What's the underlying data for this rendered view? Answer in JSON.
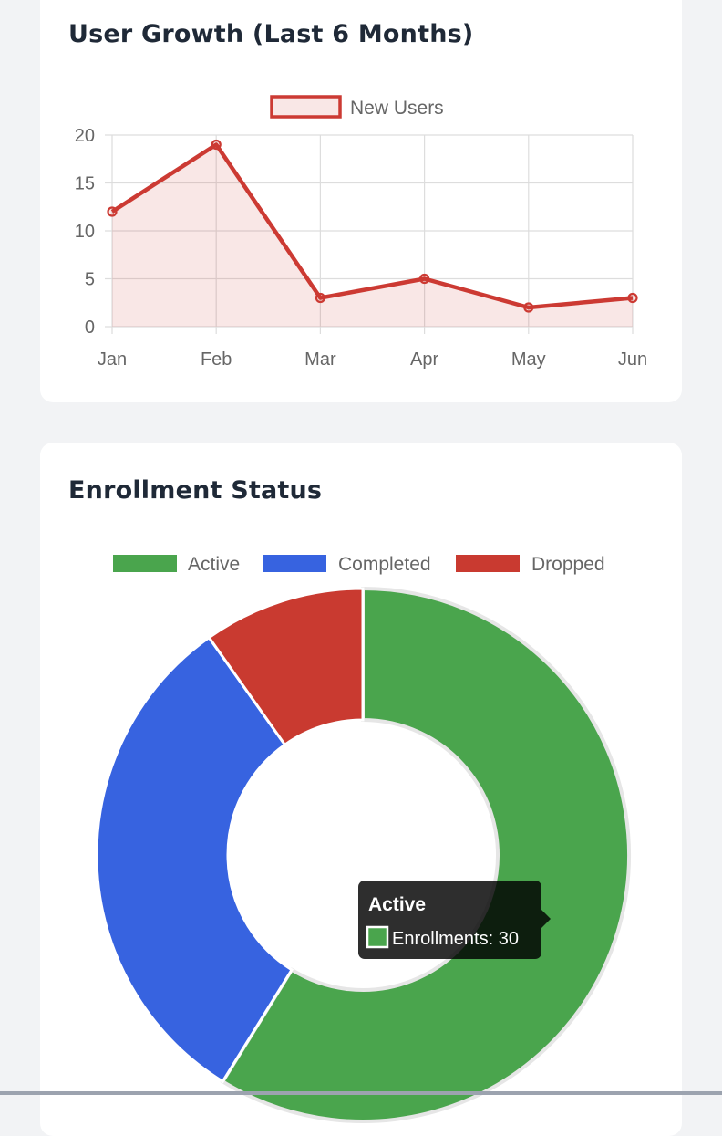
{
  "colors": {
    "page_bg": "#f2f3f5",
    "card_bg": "#ffffff",
    "title": "#1f2937",
    "line": "#cc3a33",
    "line_fill": "rgba(204,58,51,0.12)",
    "grid": "#dddddd",
    "axis_text": "#666666",
    "active": "#4aa54d",
    "completed": "#3763e0",
    "dropped": "#c93a30",
    "tooltip_bg": "rgba(0,0,0,0.82)"
  },
  "cards": {
    "growth_title": "User Growth (Last 6 Months)",
    "enroll_title": "Enrollment Status"
  },
  "chart_data": [
    {
      "type": "line",
      "title": "User Growth (Last 6 Months)",
      "categories": [
        "Jan",
        "Feb",
        "Mar",
        "Apr",
        "May",
        "Jun"
      ],
      "series": [
        {
          "name": "New Users",
          "values": [
            12,
            19,
            3,
            5,
            2,
            3
          ],
          "color": "#cc3a33",
          "filled": true
        }
      ],
      "ylim": [
        0,
        20
      ],
      "yticks": [
        "0",
        "5",
        "10",
        "15",
        "20"
      ],
      "grid": true,
      "legend": "top-center"
    },
    {
      "type": "pie",
      "variant": "doughnut",
      "title": "Enrollment Status",
      "labels": [
        "Active",
        "Completed",
        "Dropped"
      ],
      "values": [
        30,
        16,
        5
      ],
      "colors": [
        "#4aa54d",
        "#3763e0",
        "#c93a30"
      ],
      "legend": "top-center",
      "tooltip": {
        "title": "Active",
        "body": "Enrollments: 30"
      }
    }
  ]
}
